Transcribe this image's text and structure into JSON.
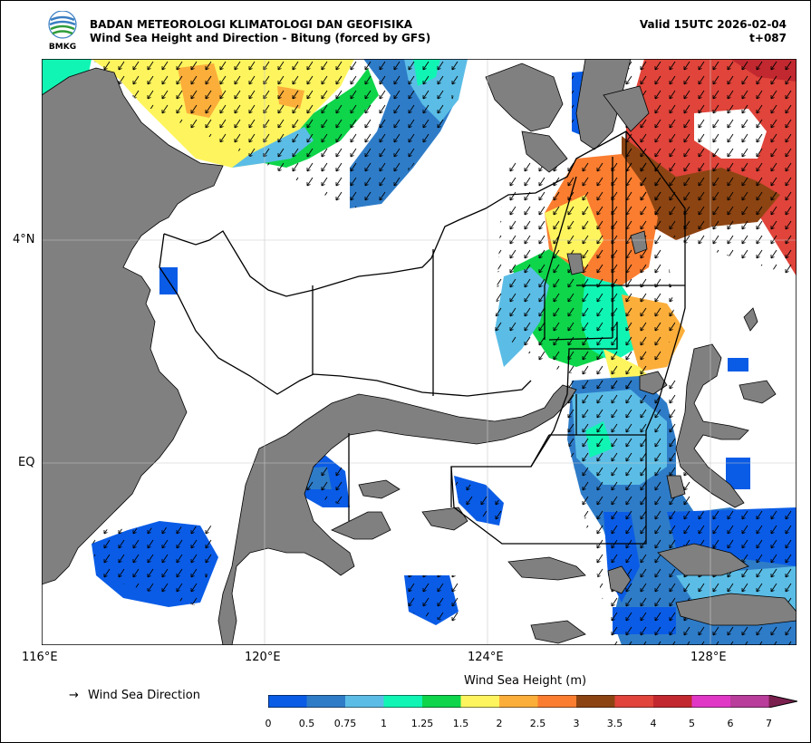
{
  "header": {
    "org": "BADAN METEOROLOGI KLIMATOLOGI DAN GEOFISIKA",
    "subtitle": "Wind Sea Height and Direction - Bitung (forced by GFS)",
    "valid": "Valid 15UTC 2026-02-04",
    "step": "t+087",
    "logo_text": "BMKG"
  },
  "axes": {
    "lat_labels": [
      "4°N",
      "EQ"
    ],
    "lon_labels": [
      "116°E",
      "120°E",
      "124°E",
      "128°E"
    ]
  },
  "legend": {
    "arrow_symbol": "→",
    "direction_label": "Wind Sea Direction"
  },
  "colorbar": {
    "title": "Wind Sea Height (m)",
    "ticks": [
      "0",
      "0.5",
      "0.75",
      "1",
      "1.25",
      "1.5",
      "2",
      "2.5",
      "3",
      "3.5",
      "4",
      "5",
      "6",
      "7"
    ],
    "colors": [
      "#0a5ce6",
      "#2e7cc8",
      "#5bbde6",
      "#11f5b4",
      "#0ed54a",
      "#fef55e",
      "#fbae3a",
      "#fa7d30",
      "#8c4412",
      "#e0443a",
      "#c2282f",
      "#e037c6",
      "#b93d9a"
    ],
    "extend_color": "#7a1f4e"
  },
  "colors": {
    "land": "#808080",
    "sea": "#ffffff"
  }
}
